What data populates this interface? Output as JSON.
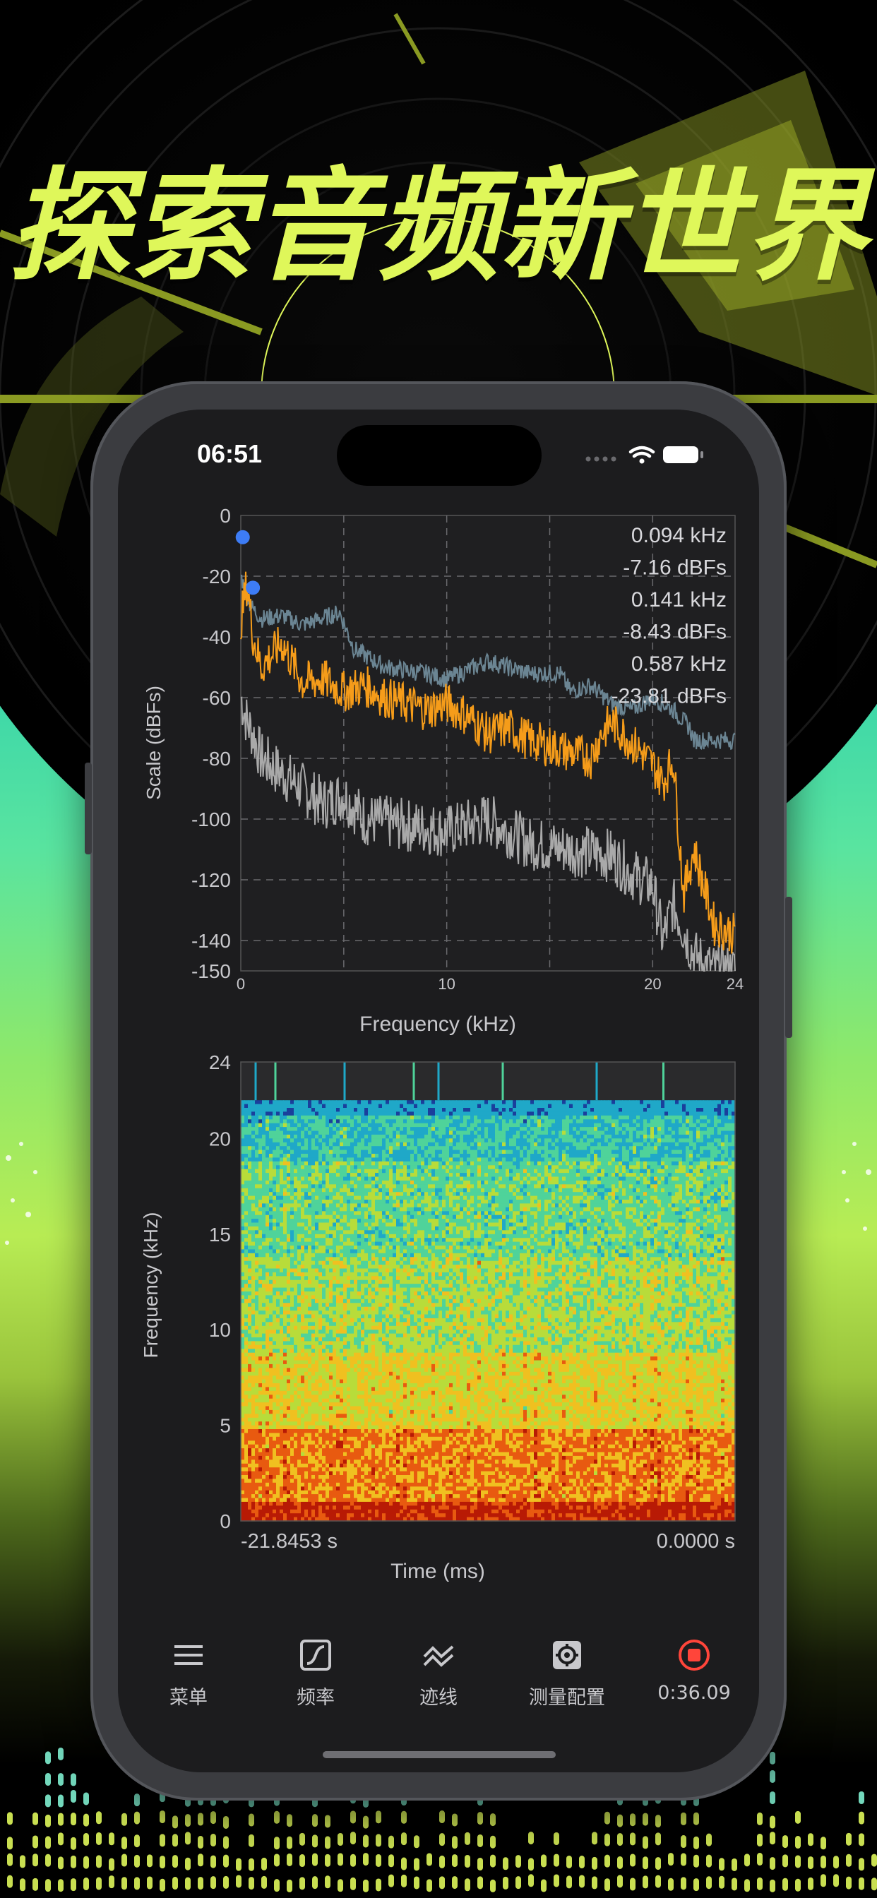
{
  "headline": "探索音频新世界",
  "colors": {
    "accent_lime": "#dff75a",
    "trace_orange": "#f59c1a",
    "trace_slate": "#6b8593",
    "trace_gray": "#a9a9a9",
    "marker_blue": "#3d7cf5",
    "record_red": "#ff453a"
  },
  "status_bar": {
    "time": "06:51",
    "icons": [
      "signal-dots-icon",
      "wifi-icon",
      "battery-icon"
    ]
  },
  "spectrum_plot": {
    "ylabel": "Scale (dBFs)",
    "xlabel": "Frequency (kHz)",
    "y_ticks": [
      "0",
      "-20",
      "-40",
      "-60",
      "-80",
      "-100",
      "-120",
      "-140",
      "-150"
    ],
    "x_ticks": [
      "0",
      "10",
      "20",
      "24"
    ],
    "readouts": [
      "0.094 kHz",
      "-7.16 dBFs",
      "0.141 kHz",
      "-8.43 dBFs",
      "0.587 kHz",
      "-23.81 dBFs"
    ]
  },
  "spectrogram": {
    "ylabel": "Frequency (kHz)",
    "xlabel": "Time (ms)",
    "y_ticks": [
      "24",
      "20",
      "15",
      "10",
      "5",
      "0"
    ],
    "time_start": "-21.8453 s",
    "time_end": "0.0000 s"
  },
  "tabbar": {
    "items": [
      {
        "label": "菜单",
        "icon": "menu-icon"
      },
      {
        "label": "频率",
        "icon": "frequency-icon"
      },
      {
        "label": "迹线",
        "icon": "trace-icon"
      },
      {
        "label": "测量配置",
        "icon": "gear-icon"
      },
      {
        "label": "0:36.09",
        "icon": "record-stop-icon"
      }
    ]
  },
  "chart_data": [
    {
      "type": "line",
      "x_unit": "kHz",
      "ylabel": "Scale (dBFs)",
      "xlabel": "Frequency (kHz)",
      "xlim": [
        0,
        24
      ],
      "ylim": [
        -150,
        0
      ],
      "x_ticks": [
        0,
        10,
        20,
        24
      ],
      "y_ticks": [
        0,
        -20,
        -40,
        -60,
        -80,
        -100,
        -120,
        -140,
        -150
      ],
      "grid": true,
      "series": [
        {
          "color": "#6b8593",
          "x": [
            0,
            0.5,
            1,
            2,
            3,
            4.8,
            5.5,
            7,
            9,
            10,
            12,
            14,
            15.5,
            16,
            17,
            18,
            19,
            20,
            21,
            21.8,
            22,
            24
          ],
          "y": [
            -20,
            -30,
            -34,
            -33,
            -36,
            -32,
            -44,
            -50,
            -52,
            -54,
            -48,
            -52,
            -52,
            -58,
            -56,
            -62,
            -64,
            -60,
            -64,
            -70,
            -74,
            -74
          ]
        },
        {
          "color": "#f59c1a",
          "x": [
            0,
            0.3,
            0.6,
            1,
            2,
            3,
            4,
            5,
            6,
            7,
            8,
            9,
            10,
            11,
            12,
            13,
            14,
            15,
            16,
            17,
            17.5,
            18,
            19,
            20,
            20.5,
            21,
            21.5,
            22,
            23,
            24
          ],
          "y": [
            -35,
            -22,
            -40,
            -50,
            -42,
            -55,
            -54,
            -58,
            -56,
            -60,
            -62,
            -64,
            -62,
            -66,
            -72,
            -70,
            -74,
            -76,
            -78,
            -80,
            -72,
            -68,
            -75,
            -82,
            -88,
            -80,
            -125,
            -110,
            -135,
            -138
          ]
        },
        {
          "color": "#a9a9a9",
          "x": [
            0,
            0.3,
            0.6,
            1,
            2,
            3,
            4,
            5,
            6,
            8,
            10,
            12,
            14,
            16,
            18,
            19,
            20,
            20.5,
            21,
            22,
            23,
            24
          ],
          "y": [
            -60,
            -68,
            -72,
            -80,
            -85,
            -90,
            -95,
            -92,
            -100,
            -102,
            -104,
            -100,
            -108,
            -110,
            -112,
            -118,
            -122,
            -140,
            -128,
            -145,
            -150,
            -150
          ]
        }
      ],
      "markers": [
        {
          "x": 0.094,
          "y": -7.16
        },
        {
          "x": 0.587,
          "y": -23.81
        }
      ]
    },
    {
      "type": "heatmap",
      "ylabel": "Frequency (kHz)",
      "xlabel": "Time (ms)",
      "ylim": [
        0,
        24
      ],
      "y_ticks": [
        24,
        20,
        15,
        10,
        5,
        0
      ],
      "x_range_labels": [
        "-21.8453 s",
        "0.0000 s"
      ],
      "upper_cutoff_khz": 22,
      "colormap": [
        "#1a3f9c",
        "#1fa8c8",
        "#4fd39a",
        "#b8dc3a",
        "#f0c020",
        "#e85a10",
        "#b81a05"
      ]
    }
  ]
}
